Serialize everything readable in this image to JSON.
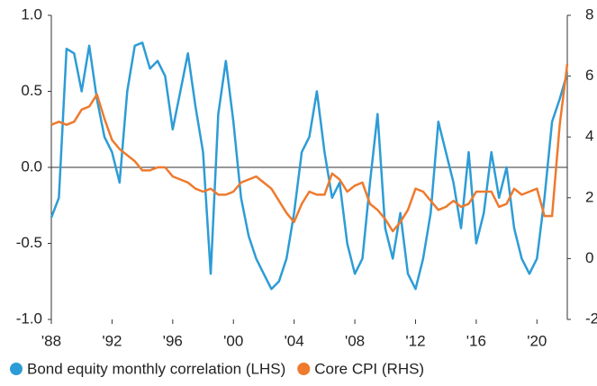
{
  "chart_data": {
    "type": "line",
    "x": [
      1988,
      1988.5,
      1989,
      1989.5,
      1990,
      1990.5,
      1991,
      1991.5,
      1992,
      1992.5,
      1993,
      1993.5,
      1994,
      1994.5,
      1995,
      1995.5,
      1996,
      1996.5,
      1997,
      1997.5,
      1998,
      1998.5,
      1999,
      1999.5,
      2000,
      2000.5,
      2001,
      2001.5,
      2002,
      2002.5,
      2003,
      2003.5,
      2004,
      2004.5,
      2005,
      2005.5,
      2006,
      2006.5,
      2007,
      2007.5,
      2008,
      2008.5,
      2009,
      2009.5,
      2010,
      2010.5,
      2011,
      2011.5,
      2012,
      2012.5,
      2013,
      2013.5,
      2014,
      2014.5,
      2015,
      2015.5,
      2016,
      2016.5,
      2017,
      2017.5,
      2018,
      2018.5,
      2019,
      2019.5,
      2020,
      2020.5,
      2021,
      2021.5,
      2022
    ],
    "series": [
      {
        "name": "Bond equity monthly correlation (LHS)",
        "color": "#2d9cd6",
        "values": [
          -0.33,
          -0.2,
          0.78,
          0.75,
          0.5,
          0.8,
          0.45,
          0.2,
          0.1,
          -0.1,
          0.5,
          0.8,
          0.82,
          0.65,
          0.7,
          0.6,
          0.25,
          0.5,
          0.75,
          0.4,
          0.1,
          -0.7,
          0.35,
          0.7,
          0.3,
          -0.2,
          -0.45,
          -0.6,
          -0.7,
          -0.8,
          -0.75,
          -0.6,
          -0.3,
          0.1,
          0.2,
          0.5,
          0.1,
          -0.2,
          -0.1,
          -0.5,
          -0.7,
          -0.6,
          -0.1,
          0.35,
          -0.4,
          -0.6,
          -0.3,
          -0.7,
          -0.8,
          -0.6,
          -0.3,
          0.3,
          0.1,
          -0.1,
          -0.4,
          0.1,
          -0.5,
          -0.3,
          0.1,
          -0.2,
          0,
          -0.4,
          -0.6,
          -0.7,
          -0.6,
          -0.2,
          0.3,
          0.45,
          0.62
        ]
      },
      {
        "name": "Core CPI (RHS)",
        "color": "#ee7a2e",
        "axis": "y2",
        "values": [
          4.4,
          4.5,
          4.4,
          4.5,
          4.9,
          5,
          5.4,
          4.6,
          3.9,
          3.6,
          3.4,
          3.2,
          2.9,
          2.9,
          3,
          3,
          2.7,
          2.6,
          2.5,
          2.3,
          2.2,
          2.3,
          2.1,
          2.1,
          2.2,
          2.5,
          2.6,
          2.7,
          2.5,
          2.3,
          1.9,
          1.5,
          1.2,
          1.8,
          2.2,
          2.1,
          2.1,
          2.8,
          2.6,
          2.2,
          2.4,
          2.5,
          1.8,
          1.6,
          1.3,
          0.9,
          1.2,
          1.6,
          2.3,
          2.2,
          1.9,
          1.6,
          1.7,
          1.9,
          1.7,
          1.8,
          2.2,
          2.2,
          2.2,
          1.7,
          1.8,
          2.3,
          2.1,
          2.2,
          2.3,
          1.4,
          1.4,
          4.4,
          6.4
        ]
      }
    ],
    "xlim": [
      1988,
      2022
    ],
    "xticks": [
      {
        "value": 1988,
        "label": "'88"
      },
      {
        "value": 1992,
        "label": "'92"
      },
      {
        "value": 1996,
        "label": "'96"
      },
      {
        "value": 2000,
        "label": "'00"
      },
      {
        "value": 2004,
        "label": "'04"
      },
      {
        "value": 2008,
        "label": "'08"
      },
      {
        "value": 2012,
        "label": "'12"
      },
      {
        "value": 2016,
        "label": "'16"
      },
      {
        "value": 2020,
        "label": "'20"
      }
    ],
    "ylim": [
      -1,
      1
    ],
    "yticks": [
      {
        "value": 1,
        "label": "1.0"
      },
      0.5,
      {
        "value": 0,
        "label": "0.0"
      },
      -0.5,
      {
        "value": -1,
        "label": "-1.0"
      }
    ],
    "y2lim": [
      -2,
      8
    ],
    "y2ticks": [
      8,
      6,
      4,
      2,
      0,
      -2
    ],
    "zero_line": true,
    "legend": "bottom"
  }
}
